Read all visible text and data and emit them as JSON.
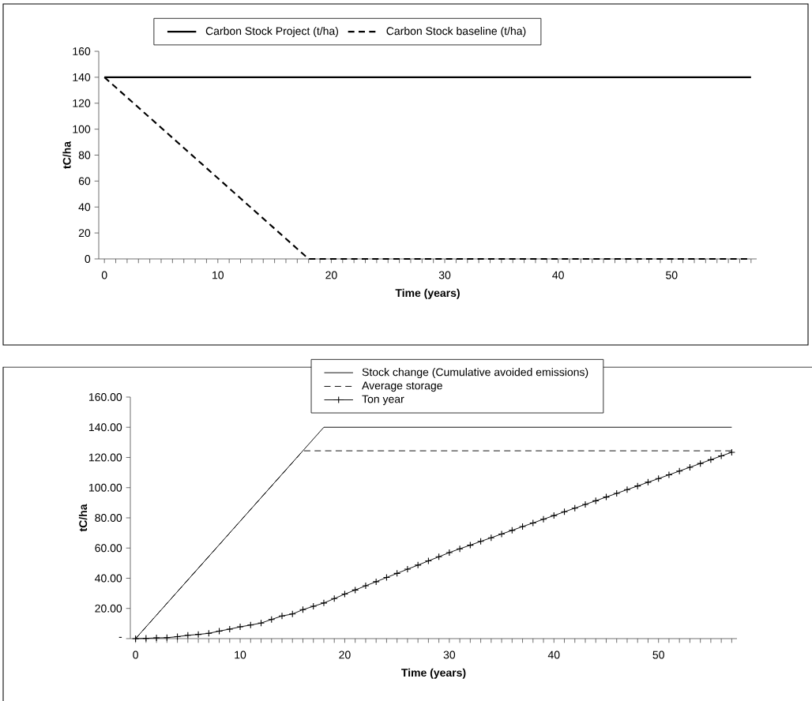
{
  "chart_data": [
    {
      "type": "line",
      "xlabel": "Time (years)",
      "ylabel": "tC/ha",
      "legend": "top",
      "xlim": [
        -0.5,
        57.5
      ],
      "xticks": [
        {
          "value": 0,
          "label": "0"
        },
        {
          "value": 1,
          "label": null
        },
        {
          "value": 2,
          "label": null
        },
        {
          "value": 3,
          "label": null
        },
        {
          "value": 4,
          "label": null
        },
        {
          "value": 5,
          "label": null
        },
        {
          "value": 6,
          "label": null
        },
        {
          "value": 7,
          "label": null
        },
        {
          "value": 8,
          "label": null
        },
        {
          "value": 9,
          "label": null
        },
        {
          "value": 10,
          "label": "10"
        },
        {
          "value": 11,
          "label": null
        },
        {
          "value": 12,
          "label": null
        },
        {
          "value": 13,
          "label": null
        },
        {
          "value": 14,
          "label": null
        },
        {
          "value": 15,
          "label": null
        },
        {
          "value": 16,
          "label": null
        },
        {
          "value": 17,
          "label": null
        },
        {
          "value": 18,
          "label": null
        },
        {
          "value": 19,
          "label": null
        },
        {
          "value": 20,
          "label": "20"
        },
        {
          "value": 21,
          "label": null
        },
        {
          "value": 22,
          "label": null
        },
        {
          "value": 23,
          "label": null
        },
        {
          "value": 24,
          "label": null
        },
        {
          "value": 25,
          "label": null
        },
        {
          "value": 26,
          "label": null
        },
        {
          "value": 27,
          "label": null
        },
        {
          "value": 28,
          "label": null
        },
        {
          "value": 29,
          "label": null
        },
        {
          "value": 30,
          "label": "30"
        },
        {
          "value": 31,
          "label": null
        },
        {
          "value": 32,
          "label": null
        },
        {
          "value": 33,
          "label": null
        },
        {
          "value": 34,
          "label": null
        },
        {
          "value": 35,
          "label": null
        },
        {
          "value": 36,
          "label": null
        },
        {
          "value": 37,
          "label": null
        },
        {
          "value": 38,
          "label": null
        },
        {
          "value": 39,
          "label": null
        },
        {
          "value": 40,
          "label": "40"
        },
        {
          "value": 41,
          "label": null
        },
        {
          "value": 42,
          "label": null
        },
        {
          "value": 43,
          "label": null
        },
        {
          "value": 44,
          "label": null
        },
        {
          "value": 45,
          "label": null
        },
        {
          "value": 46,
          "label": null
        },
        {
          "value": 47,
          "label": null
        },
        {
          "value": 48,
          "label": null
        },
        {
          "value": 49,
          "label": null
        },
        {
          "value": 50,
          "label": "50"
        },
        {
          "value": 51,
          "label": null
        },
        {
          "value": 52,
          "label": null
        },
        {
          "value": 53,
          "label": null
        },
        {
          "value": 54,
          "label": null
        },
        {
          "value": 55,
          "label": null
        },
        {
          "value": 56,
          "label": null
        },
        {
          "value": 57,
          "label": null
        }
      ],
      "ylim": [
        0,
        160
      ],
      "yticks": [
        0,
        20,
        40,
        60,
        80,
        100,
        120,
        140,
        160
      ],
      "series": [
        {
          "name": "Carbon Stock Project (t/ha)",
          "color": "#000000",
          "line_style": "solid",
          "x": [
            0,
            57
          ],
          "values": [
            140,
            140
          ]
        },
        {
          "name": "Carbon Stock baseline (t/ha)",
          "color": "#000000",
          "line_style": "dashed",
          "x": [
            0,
            18,
            57
          ],
          "values": [
            140,
            0,
            0
          ]
        }
      ]
    },
    {
      "type": "line",
      "xlabel": "Time (years)",
      "ylabel": "tC/ha",
      "legend": "top",
      "xlim": [
        -0.5,
        57.5
      ],
      "xticks": [
        {
          "value": 0,
          "label": "0"
        },
        {
          "value": 1,
          "label": null
        },
        {
          "value": 2,
          "label": null
        },
        {
          "value": 3,
          "label": null
        },
        {
          "value": 4,
          "label": null
        },
        {
          "value": 5,
          "label": null
        },
        {
          "value": 6,
          "label": null
        },
        {
          "value": 7,
          "label": null
        },
        {
          "value": 8,
          "label": null
        },
        {
          "value": 9,
          "label": null
        },
        {
          "value": 10,
          "label": "10"
        },
        {
          "value": 11,
          "label": null
        },
        {
          "value": 12,
          "label": null
        },
        {
          "value": 13,
          "label": null
        },
        {
          "value": 14,
          "label": null
        },
        {
          "value": 15,
          "label": null
        },
        {
          "value": 16,
          "label": null
        },
        {
          "value": 17,
          "label": null
        },
        {
          "value": 18,
          "label": null
        },
        {
          "value": 19,
          "label": null
        },
        {
          "value": 20,
          "label": "20"
        },
        {
          "value": 21,
          "label": null
        },
        {
          "value": 22,
          "label": null
        },
        {
          "value": 23,
          "label": null
        },
        {
          "value": 24,
          "label": null
        },
        {
          "value": 25,
          "label": null
        },
        {
          "value": 26,
          "label": null
        },
        {
          "value": 27,
          "label": null
        },
        {
          "value": 28,
          "label": null
        },
        {
          "value": 29,
          "label": null
        },
        {
          "value": 30,
          "label": "30"
        },
        {
          "value": 31,
          "label": null
        },
        {
          "value": 32,
          "label": null
        },
        {
          "value": 33,
          "label": null
        },
        {
          "value": 34,
          "label": null
        },
        {
          "value": 35,
          "label": null
        },
        {
          "value": 36,
          "label": null
        },
        {
          "value": 37,
          "label": null
        },
        {
          "value": 38,
          "label": null
        },
        {
          "value": 39,
          "label": null
        },
        {
          "value": 40,
          "label": "40"
        },
        {
          "value": 41,
          "label": null
        },
        {
          "value": 42,
          "label": null
        },
        {
          "value": 43,
          "label": null
        },
        {
          "value": 44,
          "label": null
        },
        {
          "value": 45,
          "label": null
        },
        {
          "value": 46,
          "label": null
        },
        {
          "value": 47,
          "label": null
        },
        {
          "value": 48,
          "label": null
        },
        {
          "value": 49,
          "label": null
        },
        {
          "value": 50,
          "label": "50"
        },
        {
          "value": 51,
          "label": null
        },
        {
          "value": 52,
          "label": null
        },
        {
          "value": 53,
          "label": null
        },
        {
          "value": 54,
          "label": null
        },
        {
          "value": 55,
          "label": null
        },
        {
          "value": 56,
          "label": null
        },
        {
          "value": 57,
          "label": null
        }
      ],
      "ylim": [
        0,
        160
      ],
      "yticks": [
        {
          "value": 0,
          "label": "-"
        },
        {
          "value": 20,
          "label": "20.00"
        },
        {
          "value": 40,
          "label": "40.00"
        },
        {
          "value": 60,
          "label": "60.00"
        },
        {
          "value": 80,
          "label": "80.00"
        },
        {
          "value": 100,
          "label": "100.00"
        },
        {
          "value": 120,
          "label": "120.00"
        },
        {
          "value": 140,
          "label": "140.00"
        },
        {
          "value": 160,
          "label": "160.00"
        }
      ],
      "series": [
        {
          "name": "Stock change (Cumulative avoided emissions)",
          "color": "#000000",
          "line_style": "solid",
          "marker": "none",
          "x": [
            0,
            18,
            57
          ],
          "values": [
            0,
            140,
            140
          ]
        },
        {
          "name": "Average storage",
          "color": "#000000",
          "line_style": "dashed",
          "marker": "none",
          "x": [
            0,
            16,
            57
          ],
          "values": [
            0,
            124.4,
            124.4
          ]
        },
        {
          "name": "Ton year",
          "color": "#000000",
          "line_style": "solid",
          "marker": "cross",
          "x": [
            0,
            1,
            2,
            3,
            4,
            5,
            6,
            7,
            8,
            9,
            10,
            11,
            12,
            13,
            14,
            15,
            16,
            17,
            18,
            19,
            20,
            21,
            22,
            23,
            24,
            25,
            26,
            27,
            28,
            29,
            30,
            31,
            32,
            33,
            34,
            35,
            36,
            37,
            38,
            39,
            40,
            41,
            42,
            43,
            44,
            45,
            46,
            47,
            48,
            49,
            50,
            51,
            52,
            53,
            54,
            55,
            56,
            57
          ],
          "values": [
            0,
            0.2,
            0.5,
            0.6,
            1.3,
            2.2,
            2.8,
            3.5,
            5,
            6.3,
            7.8,
            9,
            10.3,
            12.7,
            15,
            16.3,
            19.2,
            21.4,
            23.6,
            26.5,
            29.5,
            32.2,
            35,
            37.7,
            40.5,
            43.2,
            46,
            48.7,
            51.5,
            54.2,
            57,
            59.5,
            61.9,
            64.4,
            66.8,
            69.3,
            71.7,
            74.2,
            76.6,
            79.1,
            81.5,
            84,
            86.4,
            88.9,
            91.3,
            93.8,
            96.2,
            98.7,
            101.1,
            103.6,
            106,
            108.5,
            111,
            113.5,
            116,
            118.5,
            121,
            123.4
          ]
        }
      ]
    }
  ]
}
